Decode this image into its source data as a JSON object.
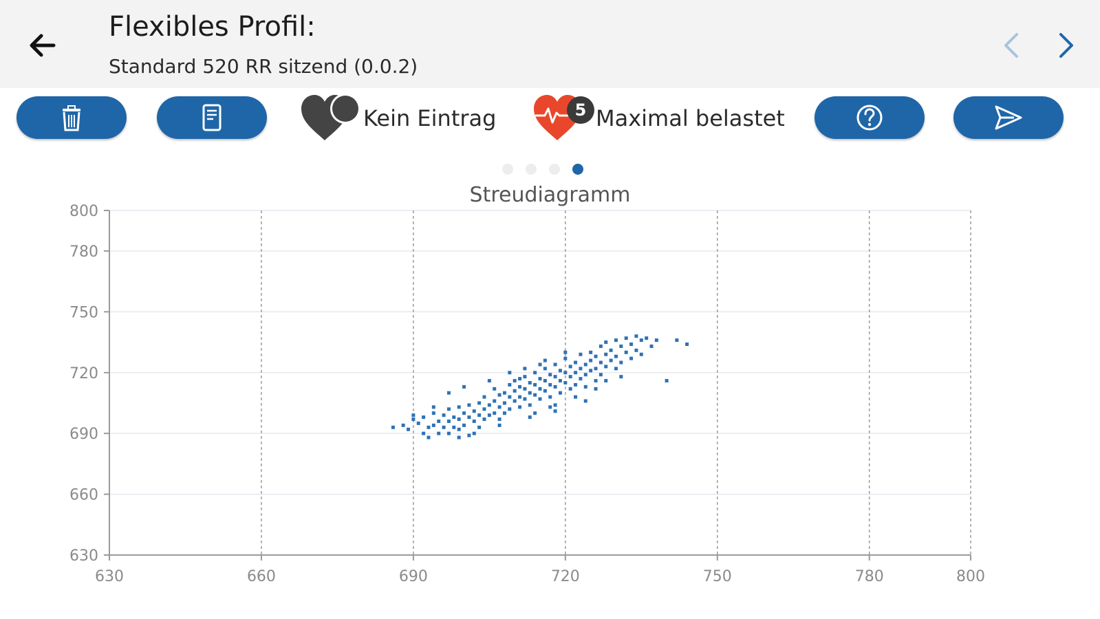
{
  "header": {
    "title": "Flexibles Profil:",
    "subtitle": "Standard 520 RR sitzend (0.0.2)",
    "back_icon": "arrow-left-icon",
    "prev_icon": "chevron-left-icon",
    "next_icon": "chevron-right-icon",
    "prev_color": "#a9c3e0",
    "next_color": "#1f66a8"
  },
  "toolbar": {
    "delete_icon": "trash-icon",
    "document_icon": "document-icon",
    "help_icon": "question-circle-icon",
    "send_icon": "send-icon",
    "button_color": "#1f66a8",
    "status_entry": {
      "label": "Kein Eintrag",
      "icon": "heart-gray-icon",
      "color": "#444444"
    },
    "status_load": {
      "label": "Maximal belastet",
      "badge": "5",
      "icon": "heart-pulse-red-icon",
      "color": "#e8472b"
    }
  },
  "pager": {
    "count": 4,
    "active_index": 3
  },
  "chart_data": {
    "type": "scatter",
    "title": "Streudiagramm",
    "xlabel": "",
    "ylabel": "",
    "xlim": [
      630,
      800
    ],
    "ylim": [
      630,
      800
    ],
    "x_ticks": [
      "630",
      "660",
      "690",
      "720",
      "750",
      "780",
      "800"
    ],
    "y_ticks": [
      "630",
      "660",
      "690",
      "720",
      "750",
      "780",
      "800"
    ],
    "x_grid": "dashed-vertical",
    "y_grid": "solid-horizontal",
    "marker_color": "#2f72b5",
    "points": [
      [
        686,
        693
      ],
      [
        688,
        694
      ],
      [
        689,
        692
      ],
      [
        690,
        697
      ],
      [
        691,
        695
      ],
      [
        692,
        690
      ],
      [
        692,
        698
      ],
      [
        693,
        693
      ],
      [
        693,
        688
      ],
      [
        694,
        700
      ],
      [
        694,
        694
      ],
      [
        695,
        696
      ],
      [
        695,
        690
      ],
      [
        696,
        699
      ],
      [
        696,
        693
      ],
      [
        697,
        702
      ],
      [
        697,
        696
      ],
      [
        697,
        690
      ],
      [
        698,
        698
      ],
      [
        698,
        693
      ],
      [
        699,
        703
      ],
      [
        699,
        697
      ],
      [
        699,
        692
      ],
      [
        700,
        700
      ],
      [
        700,
        694
      ],
      [
        701,
        704
      ],
      [
        701,
        698
      ],
      [
        701,
        689
      ],
      [
        702,
        701
      ],
      [
        702,
        696
      ],
      [
        703,
        705
      ],
      [
        703,
        699
      ],
      [
        703,
        693
      ],
      [
        704,
        708
      ],
      [
        704,
        702
      ],
      [
        704,
        697
      ],
      [
        705,
        704
      ],
      [
        705,
        699
      ],
      [
        706,
        712
      ],
      [
        706,
        706
      ],
      [
        706,
        700
      ],
      [
        707,
        709
      ],
      [
        707,
        703
      ],
      [
        707,
        697
      ],
      [
        708,
        710
      ],
      [
        708,
        705
      ],
      [
        709,
        714
      ],
      [
        709,
        708
      ],
      [
        709,
        702
      ],
      [
        710,
        716
      ],
      [
        710,
        711
      ],
      [
        710,
        706
      ],
      [
        711,
        713
      ],
      [
        711,
        708
      ],
      [
        711,
        703
      ],
      [
        712,
        718
      ],
      [
        712,
        712
      ],
      [
        712,
        707
      ],
      [
        713,
        715
      ],
      [
        713,
        710
      ],
      [
        713,
        704
      ],
      [
        714,
        720
      ],
      [
        714,
        714
      ],
      [
        714,
        709
      ],
      [
        714,
        700
      ],
      [
        715,
        717
      ],
      [
        715,
        712
      ],
      [
        715,
        707
      ],
      [
        716,
        722
      ],
      [
        716,
        716
      ],
      [
        716,
        711
      ],
      [
        717,
        719
      ],
      [
        717,
        714
      ],
      [
        717,
        708
      ],
      [
        718,
        724
      ],
      [
        718,
        718
      ],
      [
        718,
        713
      ],
      [
        718,
        704
      ],
      [
        719,
        721
      ],
      [
        719,
        716
      ],
      [
        719,
        710
      ],
      [
        720,
        727
      ],
      [
        720,
        720
      ],
      [
        720,
        715
      ],
      [
        721,
        723
      ],
      [
        721,
        718
      ],
      [
        721,
        712
      ],
      [
        722,
        725
      ],
      [
        722,
        720
      ],
      [
        722,
        714
      ],
      [
        723,
        729
      ],
      [
        723,
        722
      ],
      [
        723,
        717
      ],
      [
        724,
        724
      ],
      [
        724,
        719
      ],
      [
        724,
        713
      ],
      [
        725,
        730
      ],
      [
        725,
        726
      ],
      [
        725,
        721
      ],
      [
        726,
        728
      ],
      [
        726,
        722
      ],
      [
        726,
        716
      ],
      [
        727,
        733
      ],
      [
        727,
        725
      ],
      [
        727,
        719
      ],
      [
        728,
        735
      ],
      [
        728,
        729
      ],
      [
        728,
        723
      ],
      [
        729,
        731
      ],
      [
        729,
        726
      ],
      [
        730,
        736
      ],
      [
        730,
        728
      ],
      [
        730,
        722
      ],
      [
        731,
        733
      ],
      [
        731,
        725
      ],
      [
        732,
        737
      ],
      [
        732,
        730
      ],
      [
        733,
        734
      ],
      [
        733,
        727
      ],
      [
        734,
        738
      ],
      [
        734,
        731
      ],
      [
        735,
        736
      ],
      [
        735,
        729
      ],
      [
        736,
        737
      ],
      [
        737,
        733
      ],
      [
        738,
        736
      ],
      [
        740,
        716
      ],
      [
        742,
        736
      ],
      [
        744,
        734
      ],
      [
        715,
        724
      ],
      [
        712,
        722
      ],
      [
        709,
        720
      ],
      [
        705,
        716
      ],
      [
        700,
        713
      ],
      [
        697,
        710
      ],
      [
        718,
        701
      ],
      [
        722,
        708
      ],
      [
        726,
        712
      ],
      [
        708,
        700
      ],
      [
        702,
        690
      ],
      [
        694,
        703
      ],
      [
        690,
        699
      ],
      [
        716,
        726
      ],
      [
        720,
        730
      ],
      [
        713,
        698
      ],
      [
        707,
        694
      ],
      [
        699,
        688
      ],
      [
        724,
        706
      ],
      [
        728,
        716
      ],
      [
        731,
        718
      ],
      [
        711,
        717
      ],
      [
        717,
        703
      ]
    ]
  }
}
